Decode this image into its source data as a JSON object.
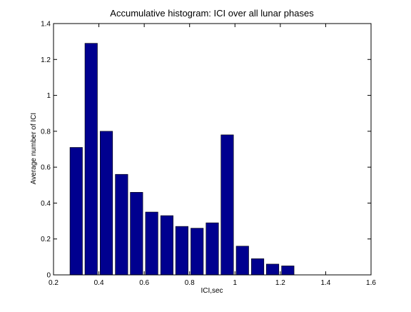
{
  "chart_data": {
    "type": "bar",
    "title": "Accumulative histogram: ICI over all lunar phases",
    "xlabel": "ICI,sec",
    "ylabel": "Average number of ICI",
    "xlim": [
      0.2,
      1.6
    ],
    "ylim": [
      0,
      1.4
    ],
    "xticks": [
      "0.2",
      "0.4",
      "0.6",
      "0.8",
      "1",
      "1.2",
      "1.4",
      "1.6"
    ],
    "xtick_values": [
      0.2,
      0.4,
      0.6,
      0.8,
      1.0,
      1.2,
      1.4,
      1.6
    ],
    "yticks": [
      "0",
      "0.2",
      "0.4",
      "0.6",
      "0.8",
      "1",
      "1.2",
      "1.4"
    ],
    "ytick_values": [
      0,
      0.2,
      0.4,
      0.6,
      0.8,
      1.0,
      1.2,
      1.4
    ],
    "bar_width": 0.055,
    "x": [
      0.3,
      0.366,
      0.433,
      0.5,
      0.566,
      0.633,
      0.7,
      0.766,
      0.833,
      0.9,
      0.966,
      1.033,
      1.1,
      1.166,
      1.233
    ],
    "values": [
      0.71,
      1.29,
      0.8,
      0.56,
      0.46,
      0.35,
      0.33,
      0.27,
      0.26,
      0.29,
      0.78,
      0.16,
      0.09,
      0.06,
      0.05
    ],
    "grid": false,
    "bar_color": "#00008f",
    "axis_color": "#000000"
  }
}
